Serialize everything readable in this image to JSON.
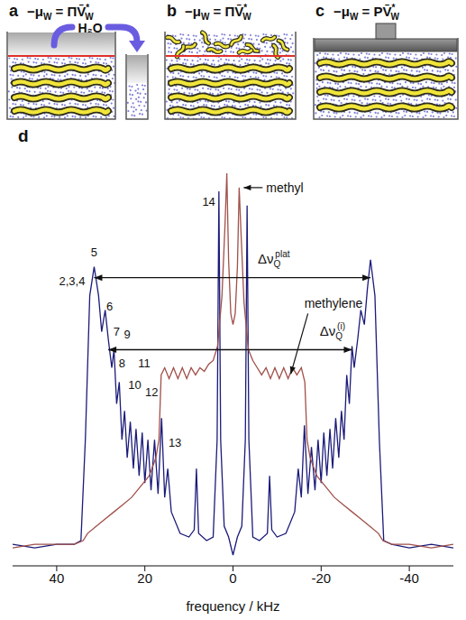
{
  "panels": [
    {
      "letter": "a",
      "formula": {
        "lhs": "−μ",
        "lhs_sub": "W",
        "rel": "=",
        "factor": "Π",
        "var": "V̄",
        "var_sup": "*",
        "var_sub": "W"
      },
      "arrow_label": "H₂O"
    },
    {
      "letter": "b",
      "formula": {
        "lhs": "−μ",
        "lhs_sub": "W",
        "rel": "=",
        "factor": "Π",
        "var": "V̄",
        "var_sup": "*",
        "var_sub": "W"
      }
    },
    {
      "letter": "c",
      "formula": {
        "lhs": "−μ",
        "lhs_sub": "W",
        "rel": "=",
        "factor": "P",
        "var": "V̄",
        "var_sup": "*",
        "var_sub": "W"
      }
    }
  ],
  "chart_data": {
    "type": "line",
    "title": "d",
    "x_label": "frequency / kHz",
    "xlim": [
      50,
      -50
    ],
    "xticks": [
      40,
      20,
      0,
      -20,
      -40
    ],
    "ylim": [
      -5,
      112
    ],
    "tick_labels": "x",
    "grid": false,
    "series": [
      {
        "color": "#1b1b7a",
        "x": [
          50,
          45,
          40,
          36,
          34.5,
          33.5,
          32.5,
          31.5,
          30.5,
          29.8,
          29,
          28.3,
          27.5,
          27,
          26.4,
          25.8,
          25.2,
          24.6,
          24,
          23.3,
          22.6,
          22,
          21.3,
          20.6,
          20,
          19.3,
          18.6,
          17.8,
          17,
          16.2,
          15.5,
          14.8,
          14,
          12,
          10,
          8.8,
          8.3,
          7.8,
          6,
          4.5,
          3.6,
          3.2,
          2.8,
          2,
          1,
          0,
          -1,
          -2,
          -2.8,
          -3.2,
          -3.6,
          -4.5,
          -6,
          -7.8,
          -8.3,
          -8.8,
          -10,
          -12,
          -14,
          -14.8,
          -15.5,
          -16.2,
          -17,
          -17.8,
          -18.6,
          -19.3,
          -20,
          -20.6,
          -21.3,
          -22,
          -22.6,
          -23.3,
          -24,
          -24.6,
          -25.2,
          -25.8,
          -26.4,
          -27,
          -27.5,
          -28.3,
          -29,
          -29.8,
          -30.5,
          -31.2,
          -32.2,
          -33.2,
          -34.2,
          -36,
          -40,
          -45,
          -50
        ],
        "values": [
          1,
          0,
          1,
          1,
          2,
          30,
          70,
          78,
          70,
          60,
          66,
          58,
          50,
          55,
          40,
          46,
          30,
          38,
          25,
          35,
          22,
          33,
          20,
          32,
          18,
          30,
          16,
          30,
          15,
          36,
          14,
          22,
          10,
          4,
          3,
          5,
          22,
          4,
          2,
          3,
          30,
          99,
          30,
          6,
          3,
          -2,
          3,
          6,
          30,
          95,
          30,
          3,
          2,
          4,
          20,
          5,
          3,
          4,
          10,
          22,
          14,
          34,
          15,
          28,
          16,
          30,
          18,
          32,
          20,
          33,
          22,
          36,
          25,
          38,
          30,
          48,
          40,
          56,
          50,
          58,
          66,
          62,
          72,
          80,
          70,
          30,
          2,
          1,
          0,
          1,
          0
        ]
      },
      {
        "color": "#a0504a",
        "x": [
          50,
          45,
          40,
          36,
          34,
          33,
          31,
          29,
          27,
          25,
          23,
          21,
          19,
          17.5,
          16.8,
          16.3,
          15.5,
          14.5,
          13.5,
          12.5,
          11.5,
          10.5,
          9.5,
          8.5,
          7.5,
          6.5,
          5.5,
          4.5,
          3.5,
          2.5,
          1.8,
          1.4,
          1,
          0.5,
          0,
          -0.5,
          -1,
          -1.4,
          -1.8,
          -2.5,
          -3.5,
          -4.5,
          -5.5,
          -6.5,
          -7.5,
          -8.5,
          -9.5,
          -10.5,
          -11.5,
          -12.5,
          -13.5,
          -14.5,
          -15.5,
          -16.3,
          -16.8,
          -17.5,
          -19,
          -21,
          -23,
          -25,
          -27,
          -29,
          -31,
          -33,
          -34,
          -36,
          -40,
          -45,
          -50
        ],
        "values": [
          0,
          1,
          1,
          1,
          2,
          4,
          6,
          8,
          10,
          12,
          14,
          17,
          20,
          25,
          30,
          48,
          50,
          47,
          50,
          47,
          50,
          47,
          50,
          48,
          50,
          49,
          51,
          52,
          56,
          70,
          90,
          104,
          80,
          65,
          62,
          65,
          78,
          100,
          88,
          68,
          55,
          52,
          50,
          48,
          50,
          47,
          50,
          47,
          50,
          47,
          50,
          48,
          50,
          46,
          30,
          25,
          20,
          17,
          14,
          12,
          10,
          8,
          6,
          4,
          2,
          1,
          1,
          0,
          1
        ]
      }
    ],
    "peak_labels": [
      {
        "text": "5",
        "x": 31.5,
        "y": 78
      },
      {
        "text": "2,3,4",
        "x": 31.5,
        "y": 78
      },
      {
        "text": "6",
        "x": 29,
        "y": 66
      },
      {
        "text": "7",
        "x": 27,
        "y": 55
      },
      {
        "text": "8",
        "x": 25.8,
        "y": 46
      },
      {
        "text": "9",
        "x": 24.6,
        "y": 38
      },
      {
        "text": "10",
        "x": 23.3,
        "y": 35
      },
      {
        "text": "11",
        "x": 22,
        "y": 33
      },
      {
        "text": "12",
        "x": 16.2,
        "y": 36
      },
      {
        "text": "13",
        "x": 14.8,
        "y": 22
      },
      {
        "text": "14",
        "x": 3.2,
        "y": 99
      }
    ],
    "annotations": [
      {
        "text": "methyl",
        "x": -1.4,
        "y": 100
      },
      {
        "text": "methylene",
        "x": -12.5,
        "y": 47
      }
    ],
    "splittings": [
      {
        "symbol": "Δν",
        "sub": "Q",
        "sup": "plat",
        "from": 31.5,
        "to": -31.2
      },
      {
        "symbol": "Δν",
        "sub": "Q",
        "sup": "(i)",
        "from": 28.3,
        "to": -27
      }
    ]
  }
}
